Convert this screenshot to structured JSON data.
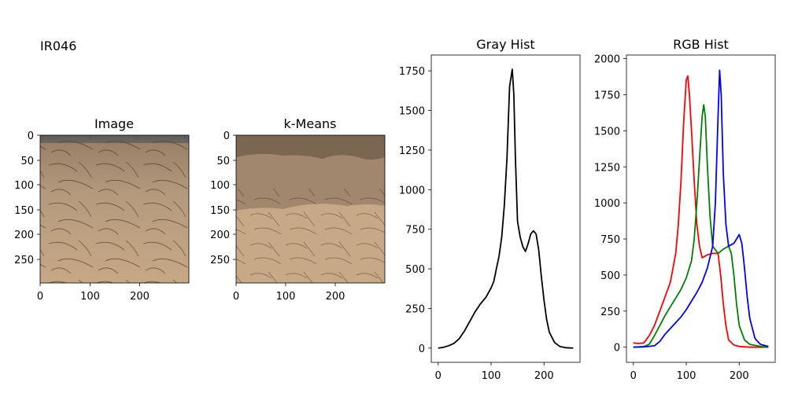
{
  "figure_label": "IR046",
  "panels": {
    "image": {
      "title": "Image",
      "xticks": [
        "0",
        "100",
        "200"
      ],
      "yticks": [
        "0",
        "50",
        "100",
        "150",
        "200",
        "250"
      ]
    },
    "kmeans": {
      "title": "k-Means",
      "xticks": [
        "0",
        "100",
        "200"
      ],
      "yticks": [
        "0",
        "50",
        "100",
        "150",
        "200",
        "250"
      ]
    }
  },
  "chart_data": [
    {
      "type": "line",
      "title": "Gray Hist",
      "xlabel": "",
      "ylabel": "",
      "xlim": [
        -13,
        268
      ],
      "ylim": [
        -90,
        1850
      ],
      "xticks": [
        0,
        100,
        200
      ],
      "yticks": [
        0,
        250,
        500,
        750,
        1000,
        1250,
        1500,
        1750
      ],
      "grid": false,
      "series": [
        {
          "color": "#000000",
          "x": [
            0,
            10,
            20,
            30,
            40,
            50,
            60,
            70,
            80,
            90,
            100,
            105,
            110,
            115,
            120,
            125,
            130,
            135,
            140,
            143,
            146,
            150,
            155,
            160,
            165,
            170,
            175,
            180,
            185,
            190,
            195,
            200,
            205,
            210,
            220,
            230,
            240,
            255
          ],
          "y": [
            0,
            5,
            15,
            30,
            60,
            110,
            170,
            230,
            280,
            320,
            380,
            420,
            500,
            580,
            700,
            900,
            1200,
            1650,
            1760,
            1600,
            1200,
            800,
            700,
            640,
            610,
            660,
            720,
            740,
            720,
            620,
            450,
            300,
            180,
            100,
            35,
            10,
            3,
            0
          ]
        }
      ]
    },
    {
      "type": "line",
      "title": "RGB Hist",
      "xlabel": "",
      "ylabel": "",
      "xlim": [
        -13,
        268
      ],
      "ylim": [
        -105,
        2025
      ],
      "xticks": [
        0,
        100,
        200
      ],
      "yticks": [
        0,
        250,
        500,
        750,
        1000,
        1250,
        1500,
        1750,
        2000
      ],
      "grid": false,
      "series": [
        {
          "color": "#ff0000",
          "x": [
            0,
            10,
            20,
            30,
            40,
            50,
            60,
            70,
            75,
            80,
            85,
            90,
            95,
            100,
            103,
            106,
            110,
            115,
            120,
            125,
            130,
            140,
            150,
            160,
            165,
            170,
            175,
            180,
            190,
            200,
            220,
            240,
            255
          ],
          "y": [
            30,
            25,
            30,
            80,
            150,
            250,
            350,
            450,
            550,
            650,
            850,
            1150,
            1550,
            1850,
            1880,
            1750,
            1500,
            1150,
            850,
            700,
            620,
            640,
            650,
            650,
            500,
            300,
            150,
            50,
            15,
            5,
            0,
            0,
            0
          ]
        },
        {
          "color": "#008000",
          "x": [
            0,
            20,
            30,
            40,
            50,
            60,
            70,
            80,
            90,
            100,
            110,
            115,
            120,
            125,
            130,
            133,
            136,
            140,
            145,
            150,
            160,
            170,
            180,
            185,
            190,
            195,
            200,
            210,
            220,
            240,
            255
          ],
          "y": [
            0,
            5,
            20,
            80,
            150,
            220,
            280,
            340,
            400,
            480,
            600,
            750,
            1000,
            1300,
            1600,
            1680,
            1600,
            1250,
            900,
            700,
            650,
            680,
            700,
            650,
            500,
            300,
            150,
            50,
            20,
            5,
            0
          ]
        },
        {
          "color": "#0000ff",
          "x": [
            0,
            20,
            40,
            50,
            60,
            70,
            80,
            90,
            100,
            110,
            120,
            130,
            140,
            150,
            155,
            160,
            163,
            166,
            170,
            175,
            180,
            190,
            200,
            205,
            210,
            215,
            220,
            230,
            240,
            250,
            255
          ],
          "y": [
            0,
            2,
            10,
            40,
            90,
            130,
            170,
            210,
            260,
            320,
            380,
            450,
            550,
            700,
            1000,
            1600,
            1920,
            1750,
            1200,
            850,
            700,
            720,
            780,
            720,
            550,
            350,
            200,
            60,
            20,
            10,
            5
          ]
        }
      ]
    }
  ]
}
